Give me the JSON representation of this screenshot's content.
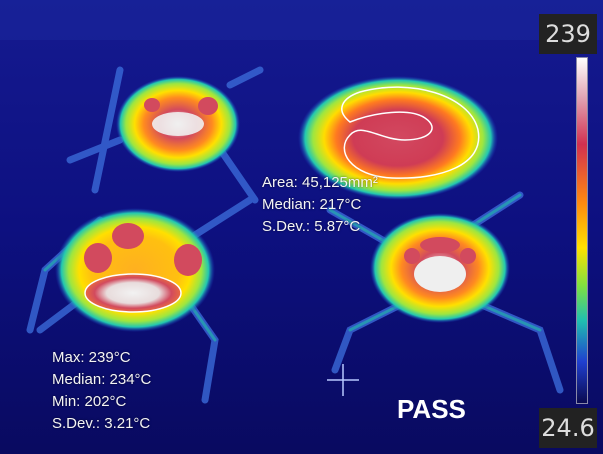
{
  "colors": {
    "background": "#0a0a6e",
    "hot": "#c8304a",
    "warm": "#ffe000",
    "mid": "#20c0a0",
    "cool": "#2a30c0",
    "outline": "#ffffff"
  },
  "scale": {
    "max_label": "239",
    "min_label": "24.6"
  },
  "region_top_right": {
    "area": "Area: 45,125mm²",
    "median": "Median: 217°C",
    "sdev": "S.Dev.: 5.87°C"
  },
  "region_bottom_left": {
    "max": "Max: 239°C",
    "median": "Median: 234°C",
    "min": "Min: 202°C",
    "sdev": "S.Dev.: 3.21°C"
  },
  "status": {
    "label": "PASS"
  }
}
